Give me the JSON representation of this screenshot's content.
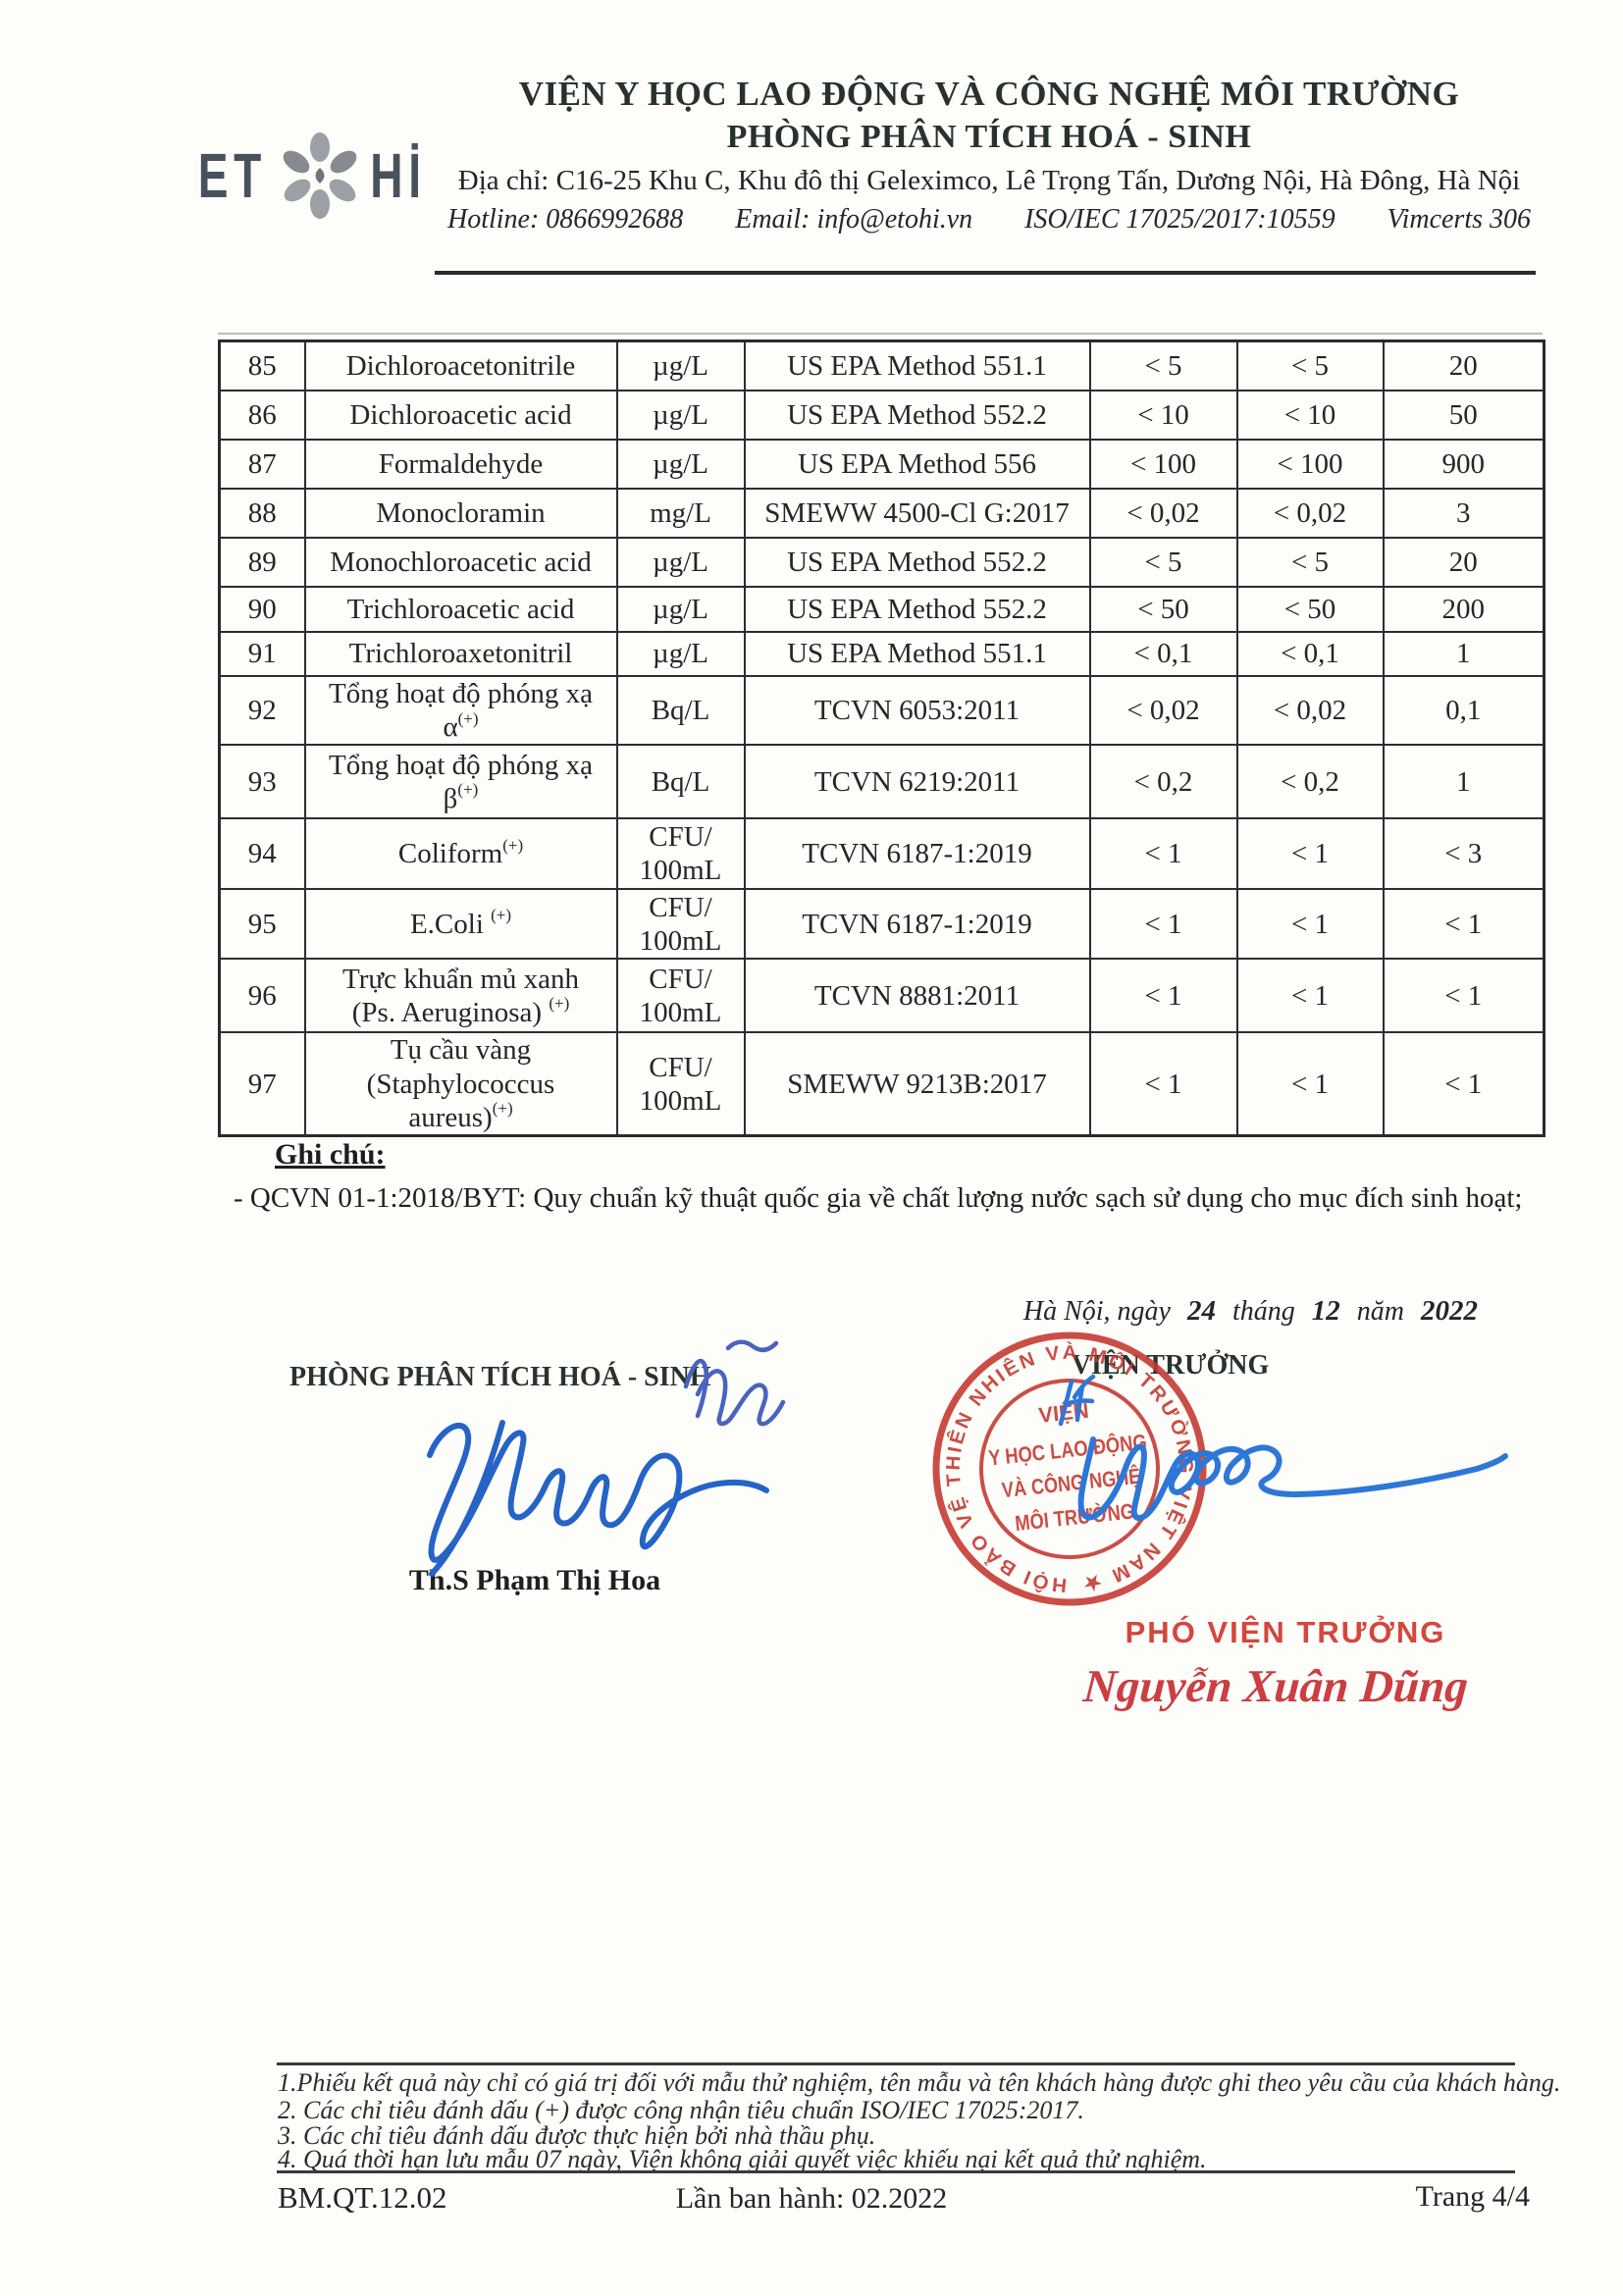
{
  "header": {
    "logo_left": "ET",
    "logo_right": "Hİ",
    "org_name": "VIỆN Y HỌC LAO ĐỘNG VÀ CÔNG NGHỆ MÔI TRƯỜNG",
    "dept_name": "PHÒNG PHÂN TÍCH HOÁ - SINH",
    "address": "Địa chỉ: C16-25 Khu C, Khu đô thị Geleximco, Lê Trọng Tấn, Dương Nội, Hà Đông, Hà Nội",
    "hotline": "Hotline: 0866992688",
    "email": "Email: info@etohi.vn",
    "iso": "ISO/IEC 17025/2017:10559",
    "vimcerts": "Vimcerts 306"
  },
  "table": {
    "rows": [
      {
        "no": "85",
        "name": [
          {
            "t": "Dichloroacetonitrile"
          }
        ],
        "unit": [
          "µg/L"
        ],
        "method": "US EPA Method 551.1",
        "r1": "< 5",
        "r2": "< 5",
        "limit": "20"
      },
      {
        "no": "86",
        "name": [
          {
            "t": "Dichloroacetic acid"
          }
        ],
        "unit": [
          "µg/L"
        ],
        "method": "US EPA Method 552.2",
        "r1": "< 10",
        "r2": "< 10",
        "limit": "50"
      },
      {
        "no": "87",
        "name": [
          {
            "t": "Formaldehyde"
          }
        ],
        "unit": [
          "µg/L"
        ],
        "method": "US EPA Method 556",
        "r1": "< 100",
        "r2": "< 100",
        "limit": "900"
      },
      {
        "no": "88",
        "name": [
          {
            "t": "Monocloramin"
          }
        ],
        "unit": [
          "mg/L"
        ],
        "method": "SMEWW 4500-Cl G:2017",
        "r1": "< 0,02",
        "r2": "< 0,02",
        "limit": "3"
      },
      {
        "no": "89",
        "name": [
          {
            "t": "Monochloroacetic acid"
          }
        ],
        "unit": [
          "µg/L"
        ],
        "method": "US EPA Method 552.2",
        "r1": "< 5",
        "r2": "< 5",
        "limit": "20"
      },
      {
        "no": "90",
        "name": [
          {
            "t": "Trichloroacetic acid"
          }
        ],
        "unit": [
          "µg/L"
        ],
        "method": "US EPA Method 552.2",
        "r1": "< 50",
        "r2": "< 50",
        "limit": "200"
      },
      {
        "no": "91",
        "name": [
          {
            "t": "Trichloroaxetonitril"
          }
        ],
        "unit": [
          "µg/L"
        ],
        "method": "US EPA Method 551.1",
        "r1": "< 0,1",
        "r2": "< 0,1",
        "limit": "1"
      },
      {
        "no": "92",
        "name": [
          {
            "t": "Tổng hoạt độ phóng xạ"
          },
          {
            "br": true
          },
          {
            "t": "α"
          },
          {
            "s": "(+)"
          }
        ],
        "unit": [
          "Bq/L"
        ],
        "method": "TCVN 6053:2011",
        "r1": "< 0,02",
        "r2": "< 0,02",
        "limit": "0,1"
      },
      {
        "no": "93",
        "name": [
          {
            "t": "Tổng hoạt độ phóng xạ"
          },
          {
            "br": true
          },
          {
            "t": "β"
          },
          {
            "s": "(+)"
          }
        ],
        "unit": [
          "Bq/L"
        ],
        "method": "TCVN 6219:2011",
        "r1": "< 0,2",
        "r2": "< 0,2",
        "limit": "1"
      },
      {
        "no": "94",
        "name": [
          {
            "t": "Coliform"
          },
          {
            "s": "(+)"
          }
        ],
        "unit": [
          "CFU/",
          "100mL"
        ],
        "method": "TCVN 6187-1:2019",
        "r1": "< 1",
        "r2": "< 1",
        "limit": "< 3"
      },
      {
        "no": "95",
        "name": [
          {
            "t": "E.Coli "
          },
          {
            "s": "(+)"
          }
        ],
        "unit": [
          "CFU/",
          "100mL"
        ],
        "method": "TCVN 6187-1:2019",
        "r1": "< 1",
        "r2": "< 1",
        "limit": "< 1"
      },
      {
        "no": "96",
        "name": [
          {
            "t": "Trực khuẩn mủ xanh"
          },
          {
            "br": true
          },
          {
            "t": "(Ps. Aeruginosa) "
          },
          {
            "s": "(+)"
          }
        ],
        "unit": [
          "CFU/",
          "100mL"
        ],
        "method": "TCVN 8881:2011",
        "r1": "< 1",
        "r2": "< 1",
        "limit": "< 1"
      },
      {
        "no": "97",
        "name": [
          {
            "t": "Tụ cầu vàng"
          },
          {
            "br": true
          },
          {
            "t": "(Staphylococcus"
          },
          {
            "br": true
          },
          {
            "t": "aureus)"
          },
          {
            "s": "(+)"
          }
        ],
        "unit": [
          "CFU/",
          "100mL"
        ],
        "method": "SMEWW 9213B:2017",
        "r1": "< 1",
        "r2": "< 1",
        "limit": "< 1"
      }
    ]
  },
  "notes": {
    "label": "Ghi chú:",
    "items": [
      "- QCVN 01-1:2018/BYT: Quy chuẩn kỹ thuật quốc gia về chất lượng nước sạch sử dụng cho mục đích sinh hoạt;"
    ]
  },
  "signing": {
    "date_prefix": "Hà Nội, ngày",
    "date_day": "24",
    "date_month_label": "tháng",
    "date_month": "12",
    "date_year_label": "năm",
    "date_year": "2022",
    "left_title": "PHÒNG PHÂN TÍCH HOÁ - SINH",
    "left_name": "Th.S Phạm Thị Hoa",
    "right_title": "VIỆN TRƯỞNG",
    "deputy_title": "PHÓ VIỆN TRƯỞNG",
    "deputy_name": "Nguyễn Xuân Dũng",
    "stamp": {
      "ring_text": "HỘI BẢO VỆ THIÊN NHIÊN VÀ MÔI TRƯỜNG VIỆT NAM ★",
      "line1": "VIỆN",
      "line2": "Y HỌC LAO ĐỘNG",
      "line3": "VÀ CÔNG NGHỆ",
      "line4": "MÔI TRƯỜNG"
    }
  },
  "footer": {
    "notes": [
      "1.Phiếu kết quả này chỉ có giá trị đối với mẫu thử nghiệm, tên mẫu và tên khách hàng được ghi theo yêu cầu của khách hàng.",
      "2. Các chỉ tiêu đánh dấu (+) được công nhận tiêu chuẩn ISO/IEC 17025:2017.",
      "3. Các chỉ tiêu đánh dấu  được thực hiện bởi nhà thầu phụ.",
      "4. Quá thời hạn lưu mẫu 07 ngày, Viện không giải quyết việc khiếu nại kết quả thử nghiệm."
    ],
    "form_code": "BM.QT.12.02",
    "issue": "Lần ban hành: 02.2022",
    "page_label": "Trang 4/4"
  },
  "colors": {
    "stamp_red": "#c4372e",
    "accent_red": "#d5463d",
    "signature_blue": "#2a6cce",
    "header_dark": "#27322c"
  }
}
